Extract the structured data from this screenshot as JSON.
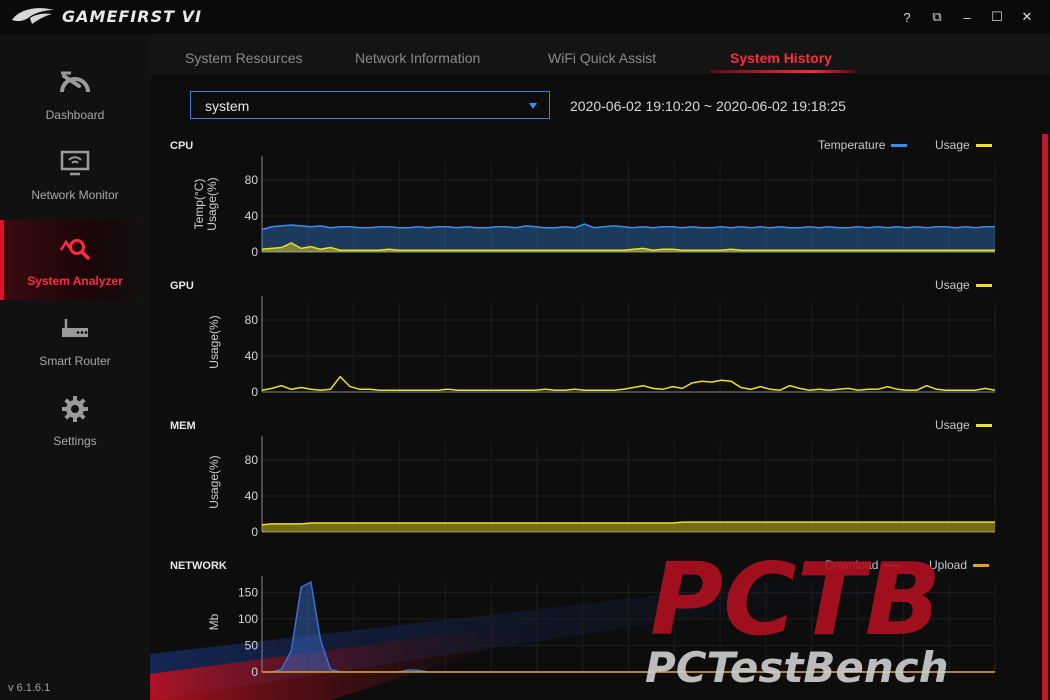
{
  "app": {
    "title": "GAMEFIRST VI",
    "version": "v 6.1.6.1"
  },
  "window_controls": {
    "help": "?",
    "mini": "⧉",
    "minimize": "–",
    "maximize": "☐",
    "close": "✕"
  },
  "sidebar": {
    "items": [
      {
        "label": "Dashboard",
        "icon": "speedometer-icon",
        "active": false
      },
      {
        "label": "Network Monitor",
        "icon": "monitor-wifi-icon",
        "active": false
      },
      {
        "label": "System Analyzer",
        "icon": "analyzer-magnifier-icon",
        "active": true
      },
      {
        "label": "Smart Router",
        "icon": "router-icon",
        "active": false
      },
      {
        "label": "Settings",
        "icon": "gear-icon",
        "active": false
      }
    ]
  },
  "tabs": [
    {
      "label": "System Resources",
      "active": false
    },
    {
      "label": "Network Information",
      "active": false
    },
    {
      "label": "WiFi Quick Assist",
      "active": false
    },
    {
      "label": "System History",
      "active": true
    }
  ],
  "history": {
    "selected_process": "system",
    "time_range": "2020-06-02 19:10:20 ~ 2020-06-02 19:18:25"
  },
  "colors": {
    "accent": "#ff2a3e",
    "temperature": "#3a8ef0",
    "usage": "#f0e020",
    "download": "#6b6bb0",
    "upload": "#e0a020"
  },
  "chart_data": [
    {
      "type": "area",
      "title": "CPU",
      "ylabel": "Temp(°C)\nUsage(%)",
      "yticks": [
        0,
        40,
        80
      ],
      "ylim": [
        0,
        100
      ],
      "legend_placement": "top-right",
      "series": [
        {
          "name": "Temperature",
          "color": "#3a8ef0",
          "values": [
            25,
            28,
            29,
            30,
            29,
            28,
            29,
            27,
            28,
            28,
            27,
            27,
            28,
            28,
            27,
            27,
            28,
            27,
            28,
            28,
            27,
            28,
            27,
            27,
            28,
            28,
            27,
            29,
            28,
            27,
            27,
            28,
            27,
            31,
            27,
            28,
            29,
            28,
            27,
            28,
            27,
            28,
            28,
            27,
            28,
            27,
            27,
            28,
            27,
            28,
            27,
            28,
            27,
            28,
            27,
            27,
            28,
            27,
            28,
            27,
            27,
            28,
            27,
            28,
            27,
            28,
            27,
            28,
            27,
            28,
            28,
            27,
            28,
            27,
            28,
            28
          ]
        },
        {
          "name": "Usage",
          "color": "#f0e020",
          "values": [
            3,
            4,
            5,
            10,
            4,
            6,
            3,
            5,
            2,
            2,
            2,
            2,
            2,
            3,
            2,
            2,
            2,
            2,
            2,
            2,
            2,
            2,
            2,
            2,
            2,
            2,
            2,
            2,
            2,
            2,
            2,
            2,
            2,
            2,
            2,
            2,
            2,
            2,
            3,
            4,
            2,
            3,
            3,
            2,
            2,
            2,
            2,
            2,
            3,
            2,
            2,
            2,
            2,
            2,
            2,
            2,
            2,
            2,
            2,
            2,
            2,
            2,
            2,
            2,
            2,
            2,
            2,
            2,
            2,
            2,
            2,
            2,
            2,
            2,
            2,
            2
          ]
        }
      ]
    },
    {
      "type": "line",
      "title": "GPU",
      "ylabel": "Usage(%)",
      "yticks": [
        0,
        40,
        80
      ],
      "ylim": [
        0,
        100
      ],
      "legend_placement": "top-right",
      "series": [
        {
          "name": "Usage",
          "color": "#f0e020",
          "values": [
            2,
            4,
            7,
            3,
            5,
            3,
            2,
            3,
            17,
            6,
            3,
            3,
            2,
            2,
            2,
            2,
            2,
            2,
            2,
            3,
            2,
            2,
            2,
            2,
            2,
            2,
            2,
            2,
            2,
            3,
            2,
            2,
            3,
            2,
            2,
            2,
            2,
            3,
            5,
            7,
            4,
            3,
            6,
            4,
            10,
            12,
            11,
            13,
            12,
            5,
            3,
            6,
            3,
            2,
            7,
            4,
            2,
            3,
            2,
            3,
            4,
            2,
            3,
            3,
            6,
            3,
            2,
            2,
            7,
            3,
            2,
            2,
            2,
            2,
            4,
            2
          ]
        }
      ]
    },
    {
      "type": "area",
      "title": "MEM",
      "ylabel": "Usage(%)",
      "yticks": [
        0,
        40,
        80
      ],
      "ylim": [
        0,
        100
      ],
      "legend_placement": "top-right",
      "series": [
        {
          "name": "Usage",
          "color": "#f0e020",
          "values": [
            8,
            9,
            9,
            9,
            9,
            10,
            10,
            10,
            10,
            10,
            10,
            10,
            10,
            10,
            10,
            10,
            10,
            10,
            10,
            10,
            10,
            10,
            10,
            10,
            10,
            10,
            10,
            10,
            10,
            10,
            10,
            10,
            10,
            10,
            10,
            10,
            10,
            10,
            10,
            10,
            10,
            10,
            10,
            11,
            11,
            11,
            11,
            11,
            11,
            11,
            11,
            11,
            11,
            11,
            11,
            11,
            11,
            11,
            11,
            11,
            11,
            11,
            11,
            11,
            11,
            11,
            11,
            11,
            11,
            11,
            11,
            11,
            11,
            11,
            11,
            11
          ]
        }
      ]
    },
    {
      "type": "line",
      "title": "NETWORK",
      "ylabel": "Mb",
      "yticks": [
        0,
        50,
        100,
        150
      ],
      "ylim": [
        0,
        170
      ],
      "legend_placement": "top-right",
      "series": [
        {
          "name": "Download",
          "color": "#3a6fd0",
          "values": [
            0,
            0,
            5,
            40,
            160,
            170,
            60,
            5,
            0,
            0,
            0,
            0,
            0,
            0,
            0,
            4,
            3,
            0,
            0,
            0,
            0,
            0,
            0,
            0,
            0,
            0,
            0,
            0,
            0,
            0,
            0,
            0,
            0,
            0,
            0,
            0,
            0,
            0,
            0,
            0,
            0,
            0,
            0,
            0,
            0,
            0,
            0,
            0,
            0,
            0,
            0,
            0,
            0,
            0,
            0,
            0,
            0,
            0,
            0,
            0,
            0,
            0,
            0,
            0,
            0,
            0,
            0,
            0,
            0,
            0,
            0,
            0,
            0,
            0,
            0,
            0
          ]
        },
        {
          "name": "Upload",
          "color": "#e0a020",
          "values": [
            0,
            0,
            0,
            0,
            0,
            0,
            0,
            0,
            0,
            0,
            0,
            0,
            0,
            0,
            0,
            0,
            0,
            0,
            0,
            0,
            0,
            0,
            0,
            0,
            0,
            0,
            0,
            0,
            0,
            0,
            0,
            0,
            0,
            0,
            0,
            0,
            0,
            0,
            0,
            0,
            0,
            0,
            0,
            0,
            0,
            0,
            0,
            0,
            0,
            0,
            0,
            0,
            0,
            0,
            0,
            0,
            0,
            0,
            0,
            0,
            0,
            0,
            0,
            0,
            0,
            0,
            0,
            0,
            0,
            0,
            0,
            0,
            0,
            0,
            0,
            0
          ]
        }
      ]
    }
  ],
  "watermark": {
    "big": "PCTB",
    "small": "PCTestBench"
  }
}
